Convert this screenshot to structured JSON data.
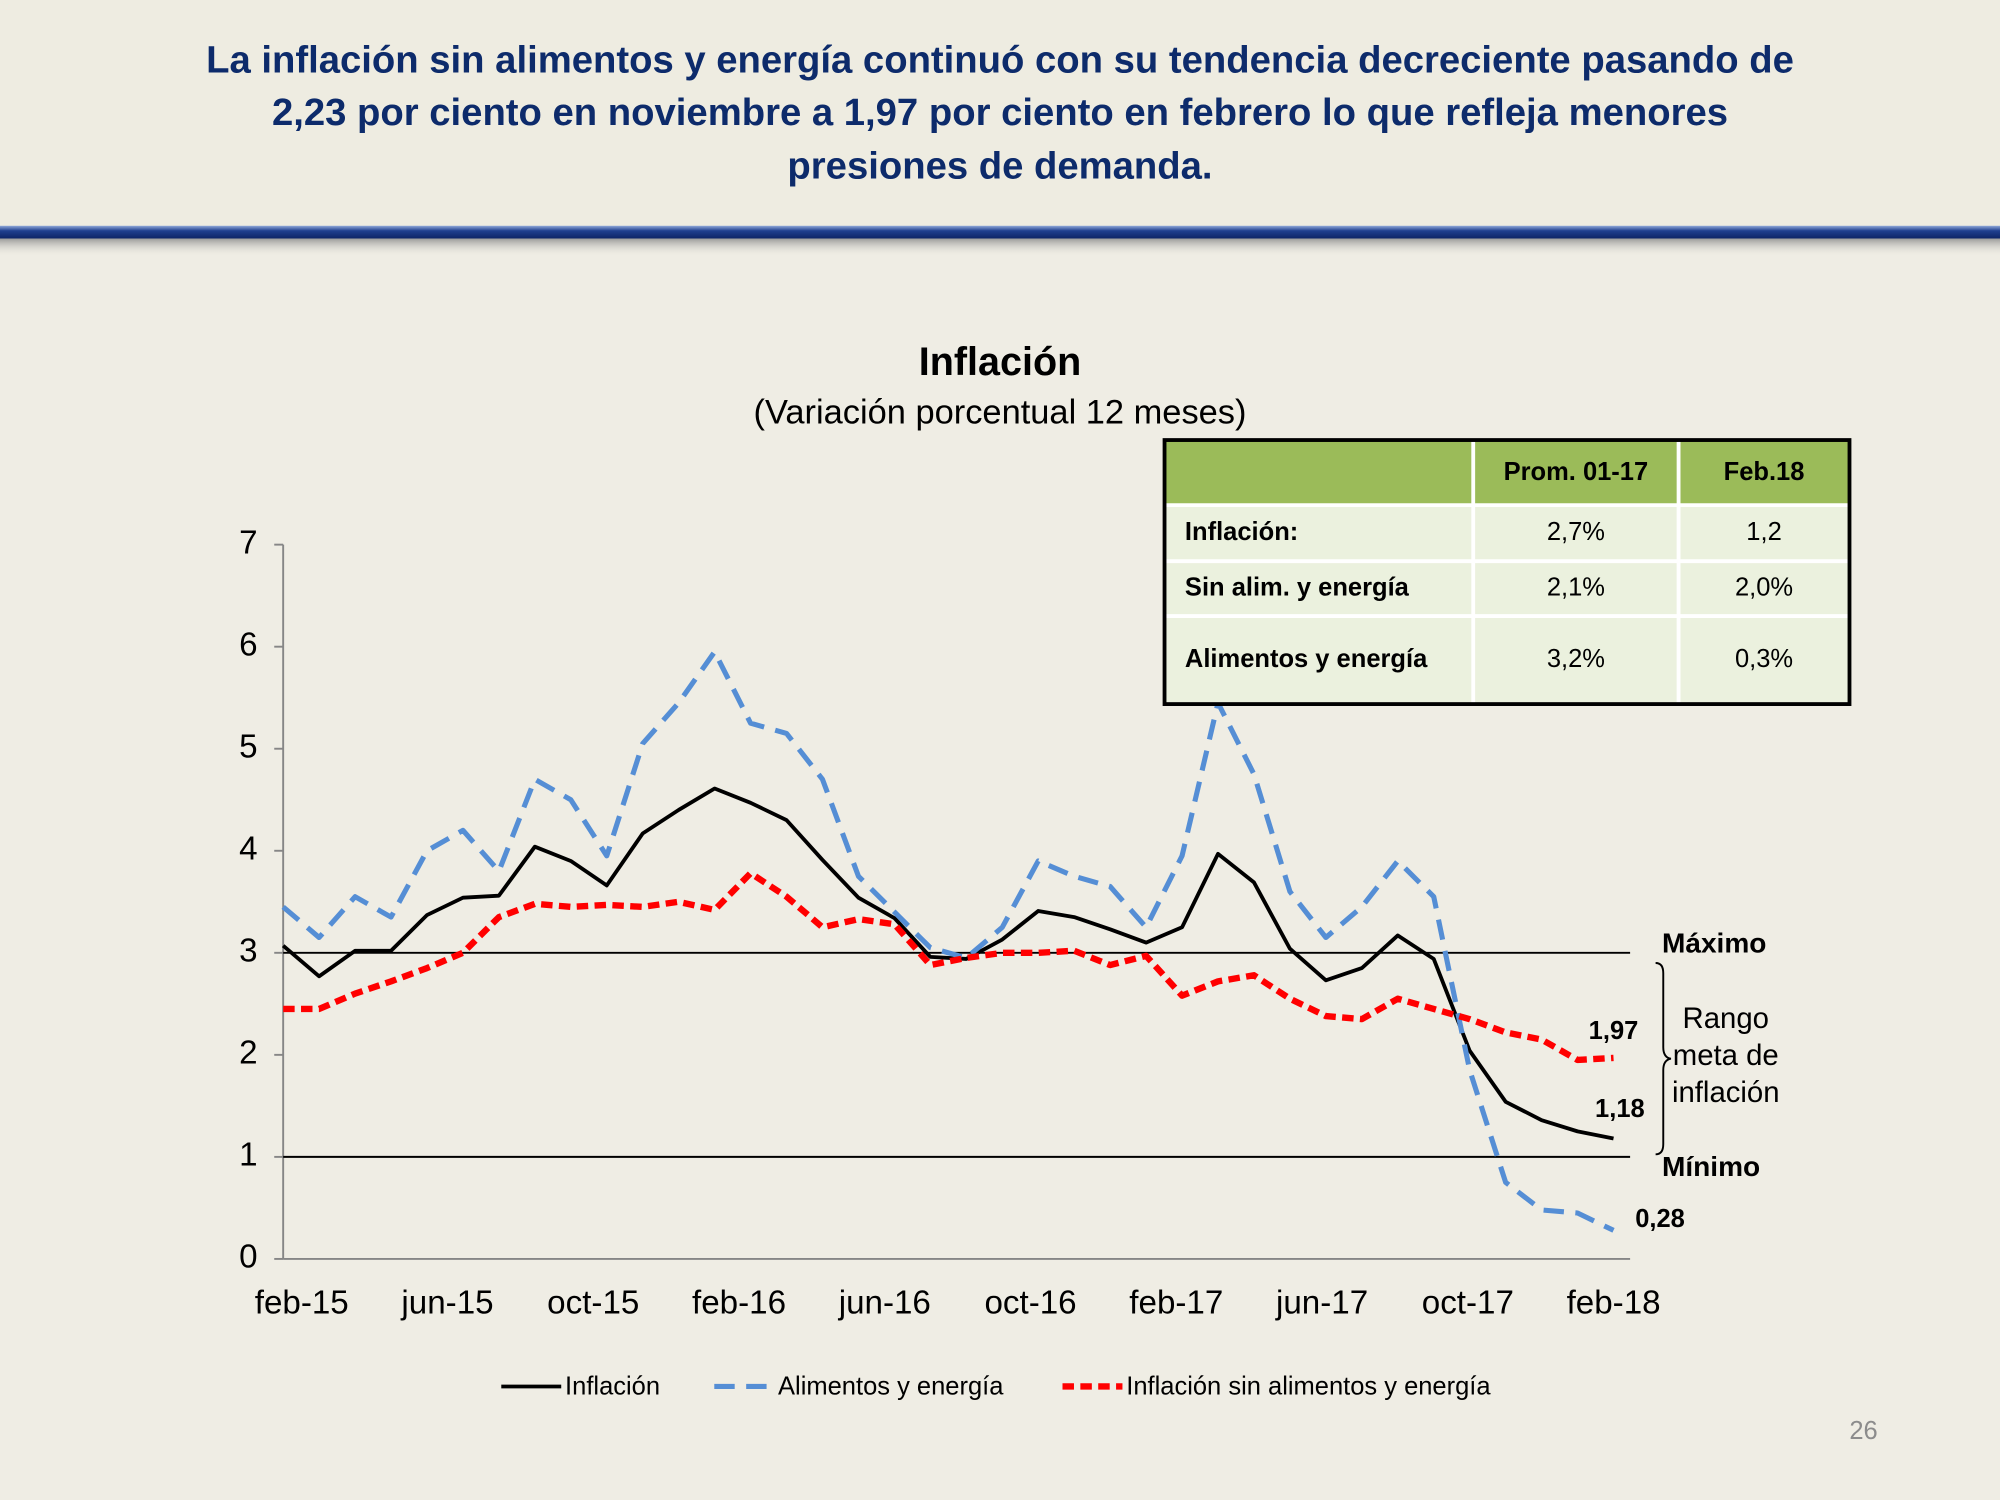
{
  "header": {
    "title_lines": [
      "La inflación sin alimentos y energía continuó con su tendencia decreciente pasando de",
      "2,23 por ciento en noviembre a 1,97 por ciento en febrero lo que refleja menores",
      "presiones de demanda."
    ]
  },
  "chart_data": {
    "type": "line",
    "title": "Inflación",
    "subtitle": "(Variación porcentual 12 meses)",
    "categories": [
      null,
      "feb-15",
      null,
      null,
      null,
      "jun-15",
      null,
      null,
      null,
      "oct-15",
      null,
      null,
      null,
      "feb-16",
      null,
      null,
      null,
      "jun-16",
      null,
      null,
      null,
      "oct-16",
      null,
      null,
      null,
      "feb-17",
      null,
      null,
      null,
      "jun-17",
      null,
      null,
      null,
      "oct-17",
      null,
      null,
      null,
      "feb-18"
    ],
    "series": [
      {
        "name": "Inflación",
        "color": "#000000",
        "dash": "solid",
        "values": [
          3.07,
          2.77,
          3.02,
          3.02,
          3.37,
          3.54,
          3.56,
          4.04,
          3.9,
          3.66,
          4.17,
          4.4,
          4.61,
          4.47,
          4.3,
          3.91,
          3.54,
          3.34,
          2.96,
          2.94,
          3.13,
          3.41,
          3.35,
          3.23,
          3.1,
          3.25,
          3.97,
          3.69,
          3.04,
          2.73,
          2.85,
          3.17,
          2.94,
          2.04,
          1.54,
          1.36,
          1.25,
          1.18
        ],
        "value_labels": [
          null,
          null,
          null,
          null,
          null,
          null,
          null,
          null,
          null,
          null,
          null,
          null,
          null,
          null,
          null,
          null,
          null,
          null,
          null,
          null,
          null,
          null,
          null,
          null,
          null,
          null,
          null,
          null,
          null,
          null,
          null,
          null,
          null,
          null,
          null,
          null,
          null,
          "1,18"
        ]
      },
      {
        "name": "Alimentos y energía",
        "color": "#558ed5",
        "dash": "dashed",
        "values": [
          3.45,
          3.15,
          3.55,
          3.35,
          4.0,
          4.2,
          3.8,
          4.7,
          4.5,
          3.95,
          5.05,
          5.45,
          5.95,
          5.25,
          5.15,
          4.7,
          3.75,
          3.4,
          3.05,
          2.95,
          3.25,
          3.9,
          3.75,
          3.65,
          3.25,
          3.95,
          5.45,
          4.75,
          3.6,
          3.15,
          3.45,
          3.9,
          3.55,
          1.85,
          0.75,
          0.48,
          0.45,
          0.28
        ],
        "value_labels": [
          null,
          null,
          null,
          null,
          null,
          null,
          null,
          null,
          null,
          null,
          null,
          null,
          null,
          null,
          null,
          null,
          null,
          null,
          null,
          null,
          null,
          null,
          null,
          null,
          null,
          null,
          null,
          null,
          null,
          null,
          null,
          null,
          null,
          null,
          null,
          null,
          null,
          "0,28"
        ]
      },
      {
        "name": "Inflación sin alimentos y energía",
        "color": "#ff0000",
        "dash": "dotted",
        "values": [
          2.45,
          2.45,
          2.6,
          2.72,
          2.85,
          3.0,
          3.35,
          3.48,
          3.45,
          3.47,
          3.45,
          3.5,
          3.42,
          3.78,
          3.55,
          3.25,
          3.33,
          3.28,
          2.88,
          2.95,
          3.0,
          3.0,
          3.02,
          2.88,
          2.97,
          2.58,
          2.72,
          2.78,
          2.55,
          2.38,
          2.35,
          2.55,
          2.45,
          2.35,
          2.22,
          2.15,
          1.95,
          1.97
        ],
        "value_labels": [
          null,
          null,
          null,
          null,
          null,
          null,
          null,
          null,
          null,
          null,
          null,
          null,
          null,
          null,
          null,
          null,
          null,
          null,
          null,
          null,
          null,
          null,
          null,
          null,
          null,
          null,
          null,
          null,
          null,
          null,
          null,
          null,
          null,
          null,
          null,
          null,
          null,
          "1,97"
        ]
      }
    ],
    "ylim": [
      0,
      7
    ],
    "yticks": [
      0,
      1,
      2,
      3,
      4,
      5,
      6,
      7
    ],
    "grid": false,
    "legend": "bottom",
    "reference_lines": [
      {
        "value": 3,
        "label": "Máximo"
      },
      {
        "value": 1,
        "label": "Mínimo"
      }
    ],
    "range_label_lines": [
      "Rango",
      "meta de",
      "inflación"
    ]
  },
  "table": {
    "header": [
      "Prom. 01-17",
      "Feb.18"
    ],
    "rows": [
      [
        "Inflación:",
        "2,7%",
        "1,2"
      ],
      [
        "Sin alim. y energía",
        "2,1%",
        "2,0%"
      ],
      [
        "Alimentos y energía",
        "3,2%",
        "0,3%"
      ]
    ]
  },
  "page_number": "26"
}
